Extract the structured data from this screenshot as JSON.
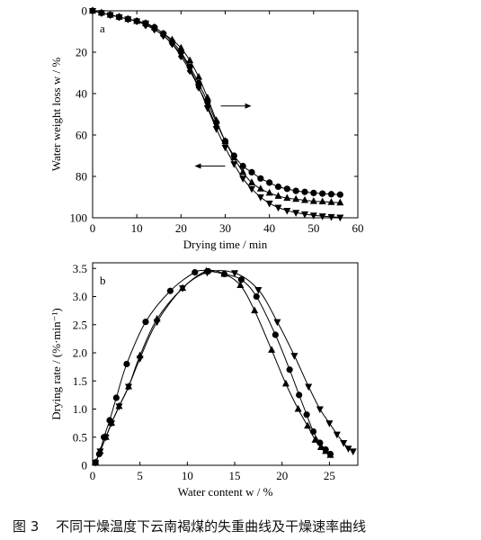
{
  "caption": {
    "number": "图 3",
    "text": "不同干燥温度下云南褐煤的失重曲线及干燥速率曲线"
  },
  "colors": {
    "ink": "#000000"
  },
  "chart_data": [
    {
      "panel": "a",
      "type": "line",
      "xlabel": "Drying time / min",
      "ylabel": "Water weight loss w / %",
      "xlim": [
        0,
        60
      ],
      "ylim": [
        0,
        100
      ],
      "y_inverted": true,
      "xticks": [
        0,
        10,
        20,
        30,
        40,
        50,
        60
      ],
      "yticks": [
        0,
        20,
        40,
        60,
        80,
        100
      ],
      "arrows": [
        {
          "direction": "right",
          "x": 29,
          "y": 46
        },
        {
          "direction": "left",
          "x": 30,
          "y": 75
        }
      ],
      "series": [
        {
          "marker": "circle",
          "x": [
            0,
            2,
            4,
            6,
            8,
            10,
            12,
            14,
            16,
            18,
            20,
            22,
            24,
            26,
            28,
            30,
            32,
            34,
            36,
            38,
            40,
            42,
            44,
            46,
            48,
            50,
            52,
            54,
            56
          ],
          "y": [
            0,
            1,
            2,
            3,
            4,
            5,
            6,
            8,
            11,
            15,
            20,
            27,
            35,
            44,
            54,
            63,
            70,
            75,
            78,
            81,
            83,
            85,
            86,
            87,
            87.5,
            88,
            88.3,
            88.6,
            88.8
          ]
        },
        {
          "marker": "triangle-up",
          "x": [
            0,
            2,
            4,
            6,
            8,
            10,
            12,
            14,
            16,
            18,
            20,
            22,
            24,
            26,
            28,
            30,
            32,
            34,
            36,
            38,
            40,
            42,
            44,
            46,
            48,
            50,
            52,
            54,
            56
          ],
          "y": [
            0,
            1,
            2,
            3,
            4,
            5,
            6,
            8,
            11,
            14,
            18,
            24,
            32,
            42,
            53,
            63,
            71,
            78,
            83,
            86,
            88,
            89.5,
            90.5,
            91,
            91.5,
            92,
            92.2,
            92.5,
            92.7
          ]
        },
        {
          "marker": "triangle-down",
          "x": [
            0,
            2,
            4,
            6,
            8,
            10,
            12,
            14,
            16,
            18,
            20,
            22,
            24,
            26,
            28,
            30,
            32,
            34,
            36,
            38,
            40,
            42,
            44,
            46,
            48,
            50,
            52,
            54,
            56
          ],
          "y": [
            0,
            1,
            2,
            3,
            4,
            5,
            6,
            9,
            12,
            16,
            21,
            28,
            37,
            47,
            57,
            66,
            74,
            81,
            86,
            90,
            93,
            95,
            96.5,
            97.5,
            98.2,
            98.8,
            99.2,
            99.5,
            99.8
          ]
        },
        {
          "marker": "diamond",
          "x": [
            0,
            2,
            4,
            6,
            8,
            10,
            12,
            14,
            16,
            18,
            20,
            22,
            24,
            26,
            28
          ],
          "y": [
            0,
            1,
            2,
            3,
            4,
            5,
            7,
            9,
            12,
            16,
            22,
            29,
            37,
            46,
            56
          ]
        }
      ]
    },
    {
      "panel": "b",
      "type": "line",
      "xlabel": "Water content w / %",
      "ylabel": "Drying rate / (%·min⁻¹)",
      "xlim": [
        0,
        28
      ],
      "ylim": [
        0,
        3.6
      ],
      "xticks": [
        0,
        5,
        10,
        15,
        20,
        25
      ],
      "yticks": [
        0,
        0.5,
        1.0,
        1.5,
        2.0,
        2.5,
        3.0,
        3.5
      ],
      "ytick_labels": [
        "0",
        "0.5",
        "1.0",
        "1.5",
        "2.0",
        "2.5",
        "3.0",
        "3.5"
      ],
      "series": [
        {
          "marker": "circle",
          "x": [
            0.3,
            0.7,
            1.2,
            1.8,
            2.5,
            3.6,
            5.6,
            8.2,
            10.8,
            12.2,
            13.9,
            15.7,
            17.3,
            19.3,
            20.8,
            21.8,
            22.6,
            23.3,
            24.0,
            24.6,
            25.1
          ],
          "y": [
            0.05,
            0.2,
            0.5,
            0.8,
            1.2,
            1.8,
            2.55,
            3.1,
            3.43,
            3.45,
            3.4,
            3.3,
            3.0,
            2.32,
            1.7,
            1.25,
            0.9,
            0.6,
            0.4,
            0.28,
            0.2
          ]
        },
        {
          "marker": "triangle-up",
          "x": [
            0.3,
            0.8,
            1.4,
            2.0,
            2.8,
            3.8,
            5.0,
            6.8,
            9.5,
            12.0,
            13.9,
            15.6,
            17.1,
            18.9,
            20.4,
            21.7,
            22.7,
            23.5,
            24.1,
            24.6,
            25.1
          ],
          "y": [
            0.05,
            0.25,
            0.5,
            0.75,
            1.05,
            1.4,
            1.95,
            2.6,
            3.15,
            3.45,
            3.4,
            3.2,
            2.75,
            2.05,
            1.45,
            1.0,
            0.7,
            0.45,
            0.32,
            0.25,
            0.18
          ]
        },
        {
          "marker": "triangle-down",
          "x": [
            0.3,
            0.8,
            1.4,
            2.0,
            2.8,
            3.8,
            5.0,
            6.8,
            9.5,
            12.1,
            15.0,
            17.5,
            19.5,
            21.3,
            22.8,
            24.0,
            25.0,
            25.8,
            26.5,
            27.0,
            27.5
          ],
          "y": [
            0.05,
            0.25,
            0.5,
            0.75,
            1.05,
            1.4,
            1.9,
            2.55,
            3.15,
            3.43,
            3.42,
            3.12,
            2.55,
            1.95,
            1.4,
            1.0,
            0.75,
            0.55,
            0.4,
            0.3,
            0.25
          ]
        }
      ]
    }
  ]
}
